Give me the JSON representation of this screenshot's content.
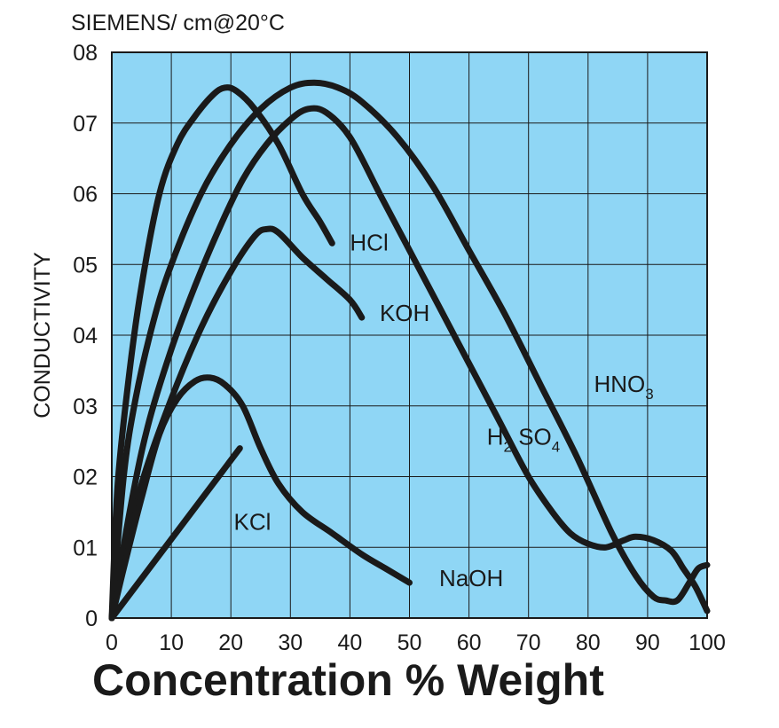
{
  "chart_data": {
    "type": "line",
    "units_label": "SIEMENS/ cm@20°C",
    "ylabel": "CONDUCTIVITY",
    "xlabel": "Concentration % Weight",
    "xlim": [
      0,
      100
    ],
    "ylim": [
      0,
      0.8
    ],
    "grid": true,
    "x_ticks": [
      0,
      10,
      20,
      30,
      40,
      50,
      60,
      70,
      80,
      90,
      100
    ],
    "x_tick_labels": [
      "0",
      "10",
      "20",
      "30",
      "40",
      "50",
      "60",
      "70",
      "80",
      "90",
      "100"
    ],
    "y_ticks": [
      0,
      0.1,
      0.2,
      0.3,
      0.4,
      0.5,
      0.6,
      0.7,
      0.8
    ],
    "y_tick_labels": [
      "0",
      "01",
      "02",
      "03",
      "04",
      "05",
      "06",
      "07",
      "08"
    ],
    "background_color": "#8fd6f5",
    "line_color": "#1a1a1a",
    "series": [
      {
        "name": "HCl",
        "label_parts": [
          {
            "text": "HCl",
            "sub": false
          }
        ],
        "label_anchor": [
          40,
          0.52
        ],
        "points": [
          [
            0,
            0
          ],
          [
            1,
            0.19
          ],
          [
            3,
            0.35
          ],
          [
            5,
            0.47
          ],
          [
            8,
            0.6
          ],
          [
            11,
            0.67
          ],
          [
            14,
            0.71
          ],
          [
            17,
            0.74
          ],
          [
            19,
            0.75
          ],
          [
            21,
            0.745
          ],
          [
            24,
            0.72
          ],
          [
            28,
            0.67
          ],
          [
            32,
            0.6
          ],
          [
            35,
            0.56
          ],
          [
            37,
            0.53
          ]
        ]
      },
      {
        "name": "KOH",
        "label_parts": [
          {
            "text": "KOH",
            "sub": false
          }
        ],
        "label_anchor": [
          45,
          0.42
        ],
        "points": [
          [
            0,
            0
          ],
          [
            2,
            0.08
          ],
          [
            5,
            0.19
          ],
          [
            10,
            0.31
          ],
          [
            15,
            0.41
          ],
          [
            20,
            0.49
          ],
          [
            24,
            0.54
          ],
          [
            26,
            0.55
          ],
          [
            28,
            0.545
          ],
          [
            32,
            0.51
          ],
          [
            36,
            0.48
          ],
          [
            40,
            0.45
          ],
          [
            42,
            0.425
          ]
        ]
      },
      {
        "name": "HNO3",
        "label_parts": [
          {
            "text": "HNO",
            "sub": false
          },
          {
            "text": "3",
            "sub": true
          }
        ],
        "label_anchor": [
          81,
          0.32
        ],
        "points": [
          [
            0,
            0
          ],
          [
            2,
            0.2
          ],
          [
            4,
            0.31
          ],
          [
            7,
            0.42
          ],
          [
            10,
            0.5
          ],
          [
            15,
            0.6
          ],
          [
            20,
            0.67
          ],
          [
            25,
            0.72
          ],
          [
            30,
            0.75
          ],
          [
            34,
            0.757
          ],
          [
            38,
            0.75
          ],
          [
            42,
            0.73
          ],
          [
            48,
            0.68
          ],
          [
            54,
            0.61
          ],
          [
            60,
            0.52
          ],
          [
            66,
            0.43
          ],
          [
            72,
            0.33
          ],
          [
            78,
            0.23
          ],
          [
            84,
            0.12
          ],
          [
            88,
            0.06
          ],
          [
            91,
            0.03
          ],
          [
            93,
            0.025
          ],
          [
            95,
            0.025
          ],
          [
            97,
            0.05
          ],
          [
            98.5,
            0.07
          ],
          [
            100,
            0.075
          ]
        ]
      },
      {
        "name": "H2SO4",
        "label_parts": [
          {
            "text": "H",
            "sub": false
          },
          {
            "text": "2",
            "sub": true
          },
          {
            "text": " SO",
            "sub": false
          },
          {
            "text": "4",
            "sub": true
          }
        ],
        "label_anchor": [
          63,
          0.245
        ],
        "points": [
          [
            0,
            0
          ],
          [
            3,
            0.15
          ],
          [
            6,
            0.27
          ],
          [
            10,
            0.38
          ],
          [
            14,
            0.47
          ],
          [
            18,
            0.55
          ],
          [
            22,
            0.62
          ],
          [
            26,
            0.67
          ],
          [
            30,
            0.705
          ],
          [
            33,
            0.72
          ],
          [
            36,
            0.715
          ],
          [
            40,
            0.68
          ],
          [
            45,
            0.6
          ],
          [
            50,
            0.52
          ],
          [
            55,
            0.44
          ],
          [
            60,
            0.36
          ],
          [
            65,
            0.28
          ],
          [
            70,
            0.2
          ],
          [
            74,
            0.15
          ],
          [
            77,
            0.12
          ],
          [
            80,
            0.105
          ],
          [
            83,
            0.1
          ],
          [
            86,
            0.11
          ],
          [
            88,
            0.115
          ],
          [
            91,
            0.11
          ],
          [
            94,
            0.095
          ],
          [
            96,
            0.07
          ],
          [
            98,
            0.045
          ],
          [
            100,
            0.01
          ]
        ]
      },
      {
        "name": "NaOH",
        "label_parts": [
          {
            "text": "NaOH",
            "sub": false
          }
        ],
        "label_anchor": [
          55,
          0.045
        ],
        "points": [
          [
            0,
            0
          ],
          [
            2,
            0.07
          ],
          [
            5,
            0.17
          ],
          [
            8,
            0.26
          ],
          [
            11,
            0.31
          ],
          [
            14,
            0.335
          ],
          [
            16.5,
            0.34
          ],
          [
            19,
            0.33
          ],
          [
            22,
            0.3
          ],
          [
            25,
            0.24
          ],
          [
            28,
            0.19
          ],
          [
            32,
            0.15
          ],
          [
            37,
            0.12
          ],
          [
            42,
            0.09
          ],
          [
            46,
            0.07
          ],
          [
            50,
            0.05
          ]
        ]
      },
      {
        "name": "KCl",
        "label_parts": [
          {
            "text": "KCl",
            "sub": false
          }
        ],
        "label_anchor": [
          20.5,
          0.125
        ],
        "points": [
          [
            0,
            0
          ],
          [
            21.5,
            0.24
          ]
        ]
      }
    ]
  }
}
